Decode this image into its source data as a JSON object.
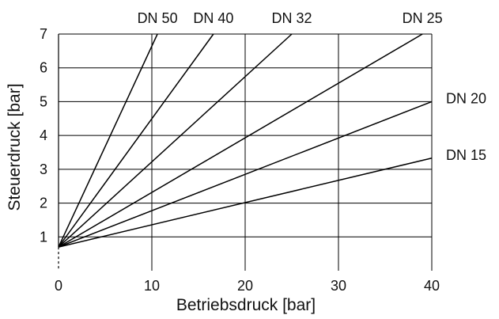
{
  "chart_data": {
    "type": "line",
    "xlabel": "Betriebsdruck [bar]",
    "ylabel": "Steuerdruck [bar]",
    "xlim": [
      0,
      40
    ],
    "ylim": [
      0,
      7
    ],
    "x_ticks": [
      0,
      10,
      20,
      30,
      40
    ],
    "y_ticks": [
      1,
      2,
      3,
      4,
      5,
      6,
      7
    ],
    "grid": true,
    "series": [
      {
        "name": "DN 50",
        "x": [
          0,
          10.6
        ],
        "y": [
          0.7,
          7
        ]
      },
      {
        "name": "DN 40",
        "x": [
          0,
          16.6
        ],
        "y": [
          0.7,
          7
        ]
      },
      {
        "name": "DN 32",
        "x": [
          0,
          25.0
        ],
        "y": [
          0.7,
          7
        ]
      },
      {
        "name": "DN 25",
        "x": [
          0,
          39.0
        ],
        "y": [
          0.7,
          7
        ]
      },
      {
        "name": "DN 20",
        "x": [
          0,
          40
        ],
        "y": [
          0.7,
          5.0
        ]
      },
      {
        "name": "DN 15",
        "x": [
          0,
          40
        ],
        "y": [
          0.7,
          3.33
        ]
      }
    ],
    "colors": {
      "line": "#000000",
      "grid": "#000000",
      "text": "#111111",
      "background": "#ffffff"
    }
  }
}
